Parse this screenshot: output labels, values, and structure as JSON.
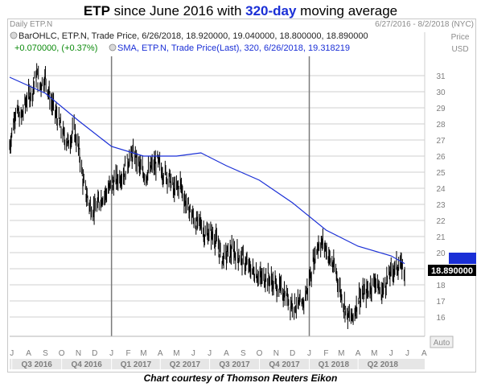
{
  "title": {
    "ticker": "ETP",
    "middle": " since June 2016 with ",
    "period": "320-day",
    "rest": " moving average"
  },
  "header": {
    "left": "Daily ETP.N",
    "right": "6/27/2016 - 8/2/2018 (NYC)"
  },
  "legend": {
    "line1": "BarOHLC, ETP.N, Trade Price, 6/26/2018, 18.920000, 19.040000, 18.800000, 18.890000",
    "line2": "+0.070000, (+0.37%)",
    "line3": "SMA, ETP.N, Trade Price(Last), 320, 6/26/2018, 19.318219"
  },
  "axis": {
    "price_label": "Price",
    "unit_label": "USD",
    "auto_label": "Auto"
  },
  "price_tag": "18.890000",
  "credit": "Chart courtesy of Thomson Reuters Eikon",
  "colors": {
    "sma": "#1a2fd6",
    "price_bars": "#000000",
    "last_price_box": "#000000",
    "sma_box": "#1a2fd6",
    "change": "#0a8a0a"
  },
  "chart_data": {
    "type": "line",
    "title": "ETP since June 2016 with 320-day moving average",
    "xlabel": "",
    "ylabel": "Price USD",
    "x_range": [
      "2016-06-27",
      "2018-08-02"
    ],
    "ylim": [
      14.8,
      32.2
    ],
    "y_ticks": [
      16,
      17,
      18,
      19,
      20,
      21,
      22,
      23,
      24,
      25,
      26,
      27,
      28,
      29,
      30,
      31
    ],
    "month_ticks": [
      "J",
      "A",
      "S",
      "O",
      "N",
      "D",
      "J",
      "F",
      "M",
      "A",
      "M",
      "J",
      "J",
      "A",
      "S",
      "O",
      "N",
      "D",
      "J",
      "F",
      "M",
      "A",
      "M",
      "J",
      "J",
      "A"
    ],
    "quarter_labels": [
      "Q3 2016",
      "Q4 2016",
      "Q1 2017",
      "Q2 2017",
      "Q3 2017",
      "Q4 2017",
      "Q1 2018",
      "Q2 2018"
    ],
    "year_dividers": [
      "2017-01-01",
      "2018-01-01"
    ],
    "grid": true,
    "legend_position": "top-left",
    "series": [
      {
        "name": "BarOHLC, ETP.N, Trade Price",
        "style": "ohlc",
        "x": [
          "2016-06-27",
          "2016-07-08",
          "2016-07-18",
          "2016-07-29",
          "2016-08-08",
          "2016-08-15",
          "2016-08-22",
          "2016-09-01",
          "2016-09-12",
          "2016-09-22",
          "2016-10-03",
          "2016-10-13",
          "2016-10-24",
          "2016-11-03",
          "2016-11-10",
          "2016-11-21",
          "2016-12-01",
          "2016-12-12",
          "2016-12-22",
          "2017-01-03",
          "2017-01-13",
          "2017-01-24",
          "2017-02-02",
          "2017-02-13",
          "2017-02-23",
          "2017-03-06",
          "2017-03-16",
          "2017-03-27",
          "2017-04-06",
          "2017-04-17",
          "2017-04-27",
          "2017-05-08",
          "2017-05-18",
          "2017-05-29",
          "2017-06-08",
          "2017-06-15",
          "2017-06-22",
          "2017-07-03",
          "2017-07-13",
          "2017-07-24",
          "2017-08-03",
          "2017-08-14",
          "2017-08-24",
          "2017-09-04",
          "2017-09-14",
          "2017-09-25",
          "2017-10-05",
          "2017-10-16",
          "2017-10-26",
          "2017-11-06",
          "2017-11-16",
          "2017-11-27",
          "2017-12-07",
          "2017-12-18",
          "2017-12-28",
          "2018-01-08",
          "2018-01-18",
          "2018-01-29",
          "2018-02-08",
          "2018-02-19",
          "2018-03-01",
          "2018-03-12",
          "2018-03-22",
          "2018-04-02",
          "2018-04-12",
          "2018-04-23",
          "2018-05-03",
          "2018-05-14",
          "2018-05-24",
          "2018-06-04",
          "2018-06-14",
          "2018-06-21",
          "2018-06-26"
        ],
        "values": [
          26.6,
          28.9,
          28.3,
          29.6,
          30.0,
          31.1,
          30.4,
          30.9,
          29.3,
          28.5,
          27.4,
          26.8,
          27.6,
          26.2,
          24.3,
          23.0,
          22.6,
          23.4,
          23.7,
          24.3,
          24.6,
          25.0,
          25.8,
          26.1,
          25.2,
          24.8,
          25.3,
          25.6,
          25.0,
          24.7,
          23.8,
          24.3,
          23.1,
          22.4,
          21.7,
          21.9,
          21.1,
          21.2,
          20.8,
          19.6,
          19.9,
          20.1,
          19.8,
          19.4,
          19.0,
          18.7,
          18.4,
          18.5,
          18.1,
          17.8,
          17.5,
          16.9,
          16.8,
          16.6,
          17.7,
          19.3,
          20.6,
          20.5,
          19.6,
          18.8,
          17.4,
          16.1,
          15.9,
          17.2,
          17.4,
          17.8,
          18.3,
          17.4,
          18.3,
          18.9,
          19.2,
          19.1,
          18.89
        ]
      },
      {
        "name": "SMA, ETP.N, Trade Price(Last), 320",
        "style": "line",
        "x": [
          "2016-06-27",
          "2016-09-01",
          "2016-11-01",
          "2017-01-01",
          "2017-03-01",
          "2017-05-01",
          "2017-06-15",
          "2017-08-01",
          "2017-10-01",
          "2017-12-01",
          "2018-02-01",
          "2018-04-01",
          "2018-06-01",
          "2018-06-26"
        ],
        "values": [
          30.9,
          29.9,
          28.2,
          26.6,
          26.0,
          26.0,
          26.2,
          25.4,
          24.5,
          23.1,
          21.4,
          20.4,
          19.8,
          19.32
        ]
      }
    ]
  }
}
